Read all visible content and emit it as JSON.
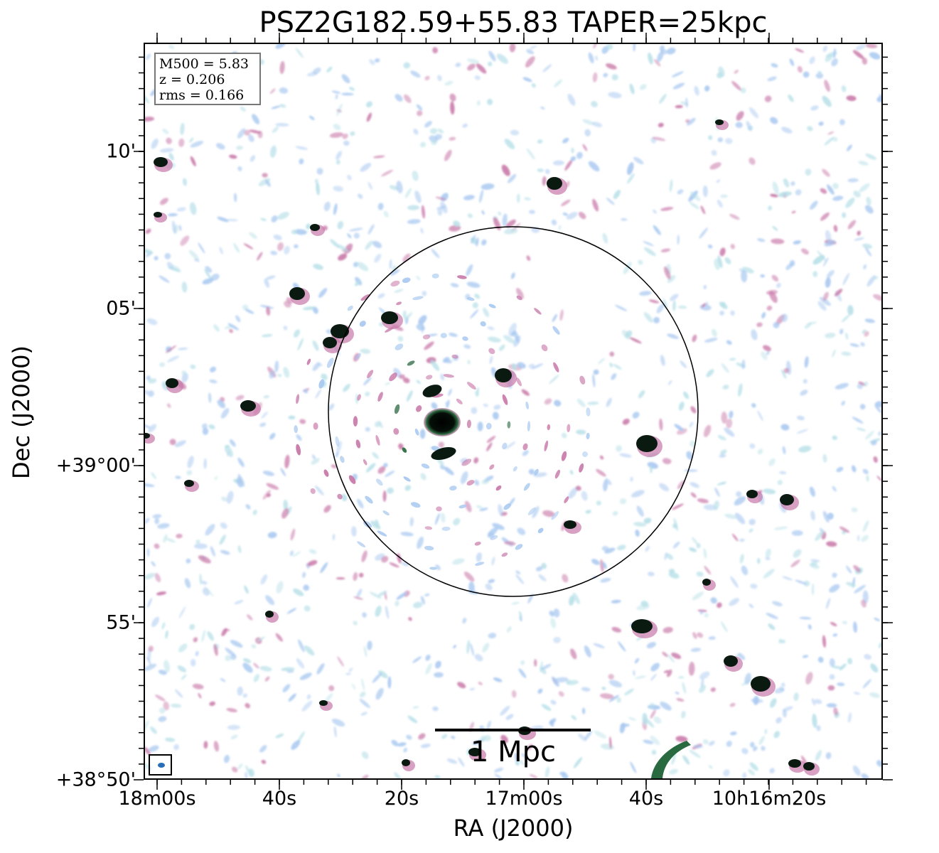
{
  "title": "PSZ2G182.59+55.83 TAPER=25kpc",
  "axes": {
    "xlabel": "RA (J2000)",
    "ylabel": "Dec (J2000)",
    "xticks": [
      "18m00s",
      "40s",
      "20s",
      "17m00s",
      "40s",
      "10h16m20s"
    ],
    "yticks": [
      "10'",
      "05'",
      "+39°00'",
      "55'",
      "+38°50'"
    ]
  },
  "info": {
    "line1": "M500 = 5.83",
    "line2": "z = 0.206",
    "line3": "rms = 0.166"
  },
  "scalebar": {
    "label": "1 Mpc"
  },
  "colors": {
    "noise_light": "#a8c8f0",
    "noise_cyan": "#b8e0e8",
    "noise_pink": "#c878a8",
    "emission_dark": "#0a1a10",
    "emission_green": "#2a6a40",
    "circle": "#000000",
    "beam": "#2a6fb5"
  }
}
